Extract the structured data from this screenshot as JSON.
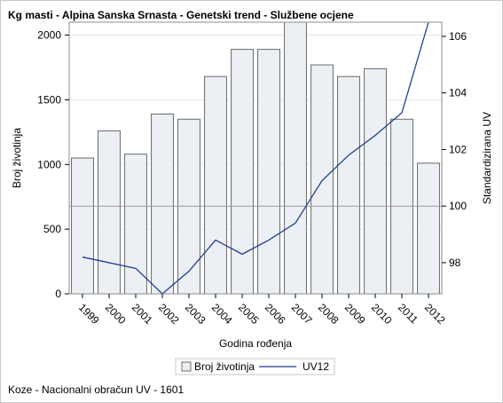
{
  "chart_data": {
    "title": "Kg masti - Alpina Sanska Srnasta - Genetski trend - Službene ocjene",
    "type": "bar",
    "xlabel": "Godina rođenja",
    "ylabel": "Broj životinja",
    "y2label": "Standardizirana UV",
    "categories": [
      "1999",
      "2000",
      "2001",
      "2002",
      "2003",
      "2004",
      "2005",
      "2006",
      "2007",
      "2008",
      "2009",
      "2010",
      "2011",
      "2012"
    ],
    "series": [
      {
        "name": "Broj životinja",
        "type": "bar",
        "axis": "left",
        "values": [
          1050,
          1260,
          1080,
          1390,
          1350,
          1680,
          1890,
          1890,
          2100,
          1770,
          1680,
          1740,
          1350,
          1010
        ]
      },
      {
        "name": "UV12",
        "type": "line",
        "axis": "right",
        "values": [
          98.2,
          98.0,
          97.8,
          96.9,
          97.7,
          98.8,
          98.3,
          98.8,
          99.4,
          100.9,
          101.8,
          102.5,
          103.3,
          106.5
        ]
      }
    ],
    "ylim": [
      0,
      2100
    ],
    "yticks": [
      "0",
      "500",
      "1000",
      "1500",
      "2000"
    ],
    "y2lim": [
      96.9,
      106.5
    ],
    "y2ticks": [
      "98",
      "100",
      "102",
      "104",
      "106"
    ],
    "reference_line": 100,
    "legend_position": "bottom",
    "colors": {
      "bar_fill": "#eceff4",
      "bar_stroke": "#6b6b6b",
      "line": "#1f3f8f",
      "ref_line": "#9a9a9a",
      "grid": "#e6e6e6"
    }
  },
  "footnote": "Koze - Nacionalni obračun UV - 1601"
}
